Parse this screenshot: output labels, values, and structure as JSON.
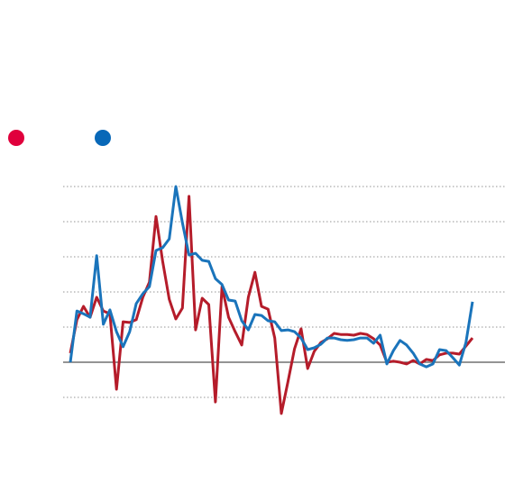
{
  "chart_data": {
    "type": "line",
    "ylim": [
      -1.5,
      5.5
    ],
    "yticks": [
      -1,
      0,
      1,
      2,
      3,
      4,
      5
    ],
    "grid": true,
    "series": [
      {
        "color": "#b51c2a",
        "legend_color": "#e0003c",
        "values": [
          0.26,
          1.21,
          1.59,
          1.28,
          1.85,
          1.46,
          1.38,
          -0.77,
          1.15,
          1.13,
          1.21,
          1.85,
          2.28,
          4.15,
          2.87,
          1.79,
          1.23,
          1.54,
          4.72,
          0.92,
          1.82,
          1.64,
          -1.13,
          2.15,
          1.28,
          0.87,
          0.49,
          1.85,
          2.56,
          1.59,
          1.51,
          0.69,
          -1.46,
          -0.56,
          0.38,
          0.95,
          -0.18,
          0.31,
          0.56,
          0.67,
          0.82,
          0.79,
          0.79,
          0.77,
          0.82,
          0.79,
          0.67,
          0.49,
          0,
          0.03,
          0,
          -0.05,
          0.05,
          -0.05,
          0.08,
          0.05,
          0.21,
          0.26,
          0.26,
          0.23,
          0.46,
          0.69
        ]
      },
      {
        "color": "#1a74bb",
        "legend_color": "#0868b8",
        "values": [
          0,
          1.46,
          1.38,
          1.28,
          3.03,
          1.08,
          1.49,
          0.87,
          0.44,
          0.87,
          1.67,
          1.95,
          2.15,
          3.18,
          3.26,
          3.51,
          5.0,
          3.97,
          3.05,
          3.1,
          2.9,
          2.87,
          2.38,
          2.21,
          1.77,
          1.74,
          1.18,
          0.92,
          1.36,
          1.33,
          1.18,
          1.15,
          0.9,
          0.92,
          0.87,
          0.69,
          0.36,
          0.41,
          0.51,
          0.69,
          0.69,
          0.64,
          0.62,
          0.64,
          0.69,
          0.69,
          0.54,
          0.77,
          -0.05,
          0.33,
          0.62,
          0.49,
          0.26,
          -0.05,
          -0.13,
          -0.05,
          0.36,
          0.33,
          0.13,
          -0.08,
          0.56,
          1.72
        ]
      }
    ]
  }
}
